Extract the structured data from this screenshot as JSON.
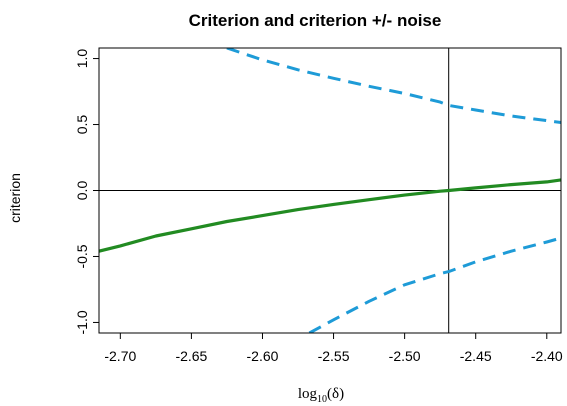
{
  "chart_data": {
    "type": "line",
    "title": "Criterion and criterion +/- noise",
    "xlabel": "log10(δ)",
    "xlabel_parts": {
      "base": "log",
      "sub": "10",
      "arg": "(δ)"
    },
    "ylabel": "criterion",
    "xlim": [
      -2.715,
      -2.39
    ],
    "ylim": [
      -1.08,
      1.08
    ],
    "x_ticks": [
      -2.7,
      -2.65,
      -2.6,
      -2.55,
      -2.5,
      -2.45,
      -2.4
    ],
    "x_tick_labels": [
      "-2.70",
      "-2.65",
      "-2.60",
      "-2.55",
      "-2.50",
      "-2.45",
      "-2.40"
    ],
    "y_ticks": [
      -1.0,
      -0.5,
      0.0,
      0.5,
      1.0
    ],
    "y_tick_labels": [
      "-1.0",
      "-0.5",
      "0.0",
      "0.5",
      "1.0"
    ],
    "reference_lines": {
      "horizontal": 0.0,
      "vertical": -2.469
    },
    "series": [
      {
        "role": "criterion",
        "style": "solid",
        "color": "#228B22",
        "x": [
          -2.715,
          -2.7,
          -2.675,
          -2.65,
          -2.625,
          -2.6,
          -2.575,
          -2.55,
          -2.525,
          -2.5,
          -2.475,
          -2.469,
          -2.45,
          -2.425,
          -2.4,
          -2.39
        ],
        "y": [
          -0.46,
          -0.42,
          -0.345,
          -0.29,
          -0.235,
          -0.19,
          -0.145,
          -0.105,
          -0.07,
          -0.035,
          -0.005,
          0.0,
          0.02,
          0.045,
          0.065,
          0.08
        ]
      },
      {
        "role": "criterion + noise",
        "style": "dashed",
        "color": "#1E9BD7",
        "x": [
          -2.625,
          -2.6,
          -2.575,
          -2.55,
          -2.525,
          -2.5,
          -2.475,
          -2.469,
          -2.45,
          -2.425,
          -2.4,
          -2.39
        ],
        "y": [
          1.08,
          0.99,
          0.915,
          0.85,
          0.79,
          0.735,
          0.67,
          0.645,
          0.61,
          0.565,
          0.53,
          0.515
        ]
      },
      {
        "role": "criterion - noise",
        "style": "dashed",
        "color": "#1E9BD7",
        "x": [
          -2.567,
          -2.55,
          -2.525,
          -2.5,
          -2.475,
          -2.469,
          -2.45,
          -2.425,
          -2.4,
          -2.39
        ],
        "y": [
          -1.08,
          -0.98,
          -0.84,
          -0.715,
          -0.63,
          -0.615,
          -0.54,
          -0.46,
          -0.39,
          -0.36
        ]
      }
    ]
  }
}
